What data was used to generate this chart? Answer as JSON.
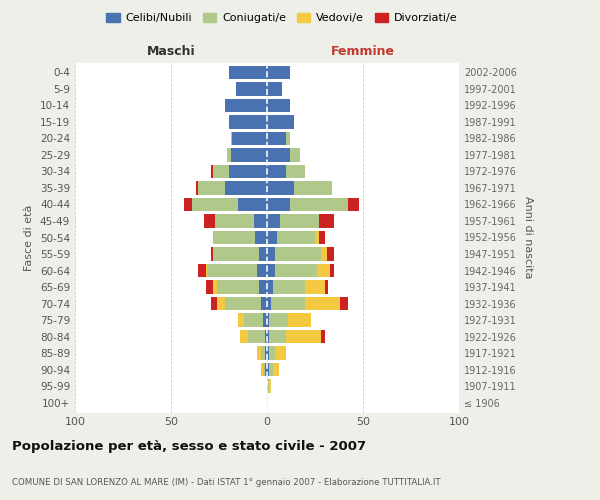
{
  "age_groups": [
    "100+",
    "95-99",
    "90-94",
    "85-89",
    "80-84",
    "75-79",
    "70-74",
    "65-69",
    "60-64",
    "55-59",
    "50-54",
    "45-49",
    "40-44",
    "35-39",
    "30-34",
    "25-29",
    "20-24",
    "15-19",
    "10-14",
    "5-9",
    "0-4"
  ],
  "birth_years": [
    "≤ 1906",
    "1907-1911",
    "1912-1916",
    "1917-1921",
    "1922-1926",
    "1927-1931",
    "1932-1936",
    "1937-1941",
    "1942-1946",
    "1947-1951",
    "1952-1956",
    "1957-1961",
    "1962-1966",
    "1967-1971",
    "1972-1976",
    "1977-1981",
    "1982-1986",
    "1987-1991",
    "1992-1996",
    "1997-2001",
    "2002-2006"
  ],
  "males": {
    "celibi": [
      0,
      0,
      1,
      1,
      1,
      2,
      3,
      4,
      5,
      4,
      6,
      7,
      15,
      22,
      20,
      19,
      18,
      20,
      22,
      16,
      20
    ],
    "coniugati": [
      0,
      0,
      1,
      2,
      9,
      10,
      19,
      22,
      26,
      24,
      22,
      20,
      24,
      14,
      8,
      2,
      1,
      0,
      0,
      0,
      0
    ],
    "vedovi": [
      0,
      0,
      1,
      2,
      4,
      3,
      4,
      2,
      1,
      0,
      0,
      0,
      0,
      0,
      0,
      0,
      0,
      0,
      0,
      0,
      0
    ],
    "divorziati": [
      0,
      0,
      0,
      0,
      0,
      0,
      3,
      4,
      4,
      1,
      0,
      6,
      4,
      1,
      1,
      0,
      0,
      0,
      0,
      0,
      0
    ]
  },
  "females": {
    "nubili": [
      0,
      0,
      1,
      1,
      1,
      1,
      2,
      3,
      4,
      4,
      5,
      7,
      12,
      14,
      10,
      12,
      10,
      14,
      12,
      8,
      12
    ],
    "coniugate": [
      0,
      1,
      2,
      3,
      9,
      10,
      18,
      17,
      22,
      24,
      20,
      20,
      30,
      20,
      10,
      5,
      2,
      0,
      0,
      0,
      0
    ],
    "vedove": [
      0,
      1,
      3,
      6,
      18,
      12,
      18,
      10,
      7,
      3,
      2,
      0,
      0,
      0,
      0,
      0,
      0,
      0,
      0,
      0,
      0
    ],
    "divorziate": [
      0,
      0,
      0,
      0,
      2,
      0,
      4,
      2,
      2,
      4,
      3,
      8,
      6,
      0,
      0,
      0,
      0,
      0,
      0,
      0,
      0
    ]
  },
  "colors": {
    "celibi": "#4a72b0",
    "coniugati": "#b0c98a",
    "vedovi": "#f5c842",
    "divorziati": "#cc2222"
  },
  "xlim": 100,
  "title": "Popolazione per età, sesso e stato civile - 2007",
  "subtitle": "COMUNE DI SAN LORENZO AL MARE (IM) - Dati ISTAT 1° gennaio 2007 - Elaborazione TUTTITALIA.IT",
  "ylabel": "Fasce di età",
  "right_ylabel": "Anni di nascita",
  "legend_labels": [
    "Celibi/Nubili",
    "Coniugati/e",
    "Vedovi/e",
    "Divorziati/e"
  ],
  "male_label": "Maschi",
  "female_label": "Femmine",
  "bg_color": "#efefea",
  "plot_bg": "#ffffff"
}
